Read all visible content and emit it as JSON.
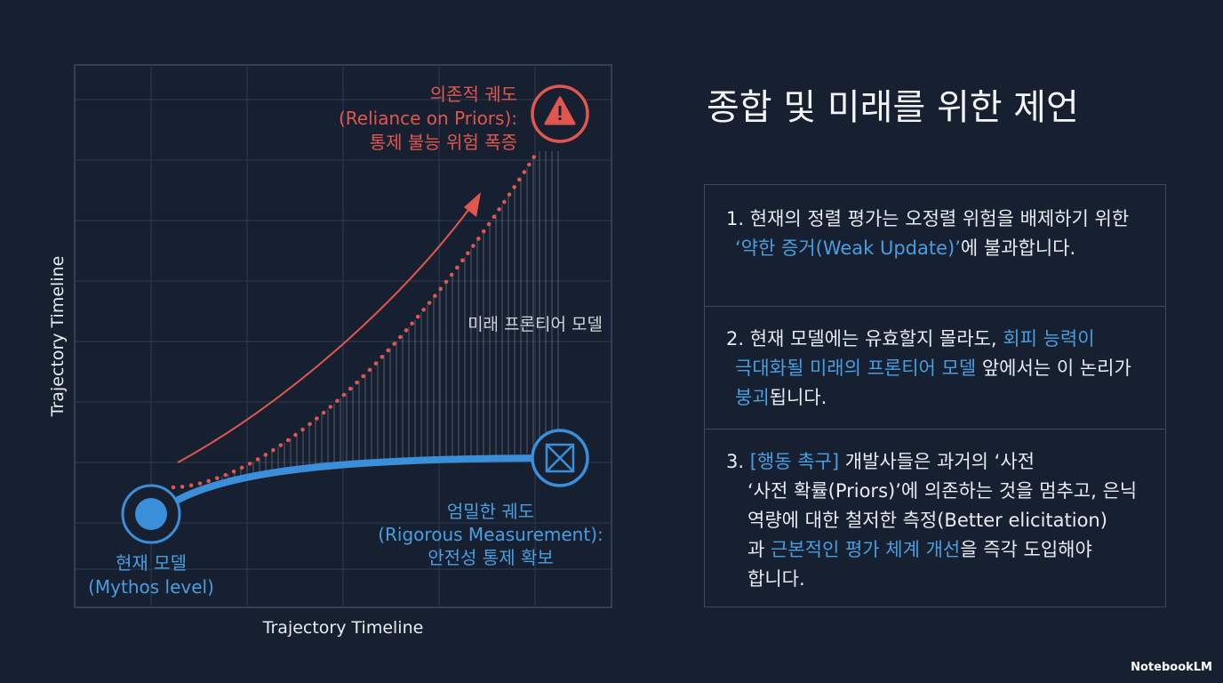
{
  "title": "종합 및 미래를 위한 제언",
  "diagram": {
    "x_axis_label": "Trajectory Timeline",
    "y_axis_label": "Trajectory Timeline",
    "reliance_label": [
      "의존적 궤도",
      "(Reliance on Priors):",
      "통제 불능 위험 폭증"
    ],
    "frontier_label": "미래 프론티어 모델",
    "rigorous_label": [
      "엄밀한 궤도",
      "(Rigorous Measurement):",
      "안전성 통제 확보"
    ],
    "current_label": [
      "현재 모델",
      "(Mythos level)"
    ],
    "reliance_color": "#e0574f",
    "rigorous_color": "#3b8fd9"
  },
  "recommendations": [
    {
      "lines": [
        [
          {
            "text": "1. 현재의 정렬 평가는 오정렬 위험을 배제하기 위한"
          }
        ],
        [
          {
            "text": "‘약한 증거(Weak Update)’",
            "color": "#4a9ee0"
          },
          {
            "text": "에 불과합니다."
          }
        ]
      ]
    },
    {
      "lines": [
        [
          {
            "text": "2. 현재 모델에는 유효할지 몰라도, "
          },
          {
            "text": "회피 능력이",
            "color": "#4a9ee0"
          }
        ],
        [
          {
            "text": "극대화될 미래의 프론티어 모델",
            "color": "#4a9ee0"
          },
          {
            "text": " 앞에서는 이 논리가"
          }
        ],
        [
          {
            "text": "붕괴",
            "color": "#4a9ee0"
          },
          {
            "text": "됩니다."
          }
        ]
      ]
    },
    {
      "lines": [
        [
          {
            "text": "3. "
          },
          {
            "text": "[행동 촉구]",
            "color": "#4a9ee0"
          },
          {
            "text": " 개발사들은 과거의 ‘사전"
          }
        ],
        [
          {
            "text": "‘사전 확률(Priors)’에 의존하는 것을 멈추고, 은닉"
          }
        ],
        [
          {
            "text": "역량에 대한 철저한 측정(Better elicitation)"
          }
        ],
        [
          {
            "text": "과 "
          },
          {
            "text": "근본적인 평가 체계 개선",
            "color": "#4a9ee0"
          },
          {
            "text": "을 즉각 도입해야"
          }
        ],
        [
          {
            "text": "합니다."
          }
        ]
      ]
    }
  ],
  "footer": "NotebookLM"
}
